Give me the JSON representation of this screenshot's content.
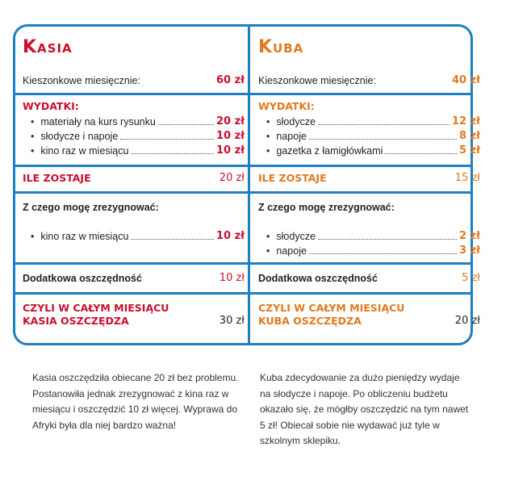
{
  "kasia": {
    "name": "Kasia",
    "allowance_label": "Kieszonkowe miesięcznie:",
    "allowance_value": "60 zł",
    "expenses_title": "WYDATKI:",
    "expenses": [
      {
        "label": "materiały na kurs rysunku",
        "value": "20 zł"
      },
      {
        "label": "słodycze i napoje",
        "value": "10 zł"
      },
      {
        "label": "kino raz w miesiącu",
        "value": "10 zł"
      }
    ],
    "left_label": "ILE ZOSTAJE",
    "left_value": "20 zł",
    "resign_title": "Z czego mogę zrezygnować:",
    "resign": [
      {
        "label": "kino raz w miesiącu",
        "value": "10 zł"
      }
    ],
    "extra_label": "Dodatkowa oszczędność",
    "extra_value": "10 zł",
    "total_line1": "CZYLI W CAŁYM MIESIĄCU",
    "total_line2": "KASIA OSZCZĘDZA",
    "total_value": "30 zł",
    "note": "Kasia oszczędziła obiecane 20 zł bez problemu. Postanowiła jednak zrezygnować z kina raz w miesiącu i oszczędzić 10 zł więcej. Wyprawa do Afryki była dla niej bardzo ważna!"
  },
  "kuba": {
    "name": "Kuba",
    "allowance_label": "Kieszonkowe miesięcznie:",
    "allowance_value": "40 zł",
    "expenses_title": "WYDATKI:",
    "expenses": [
      {
        "label": "słodycze",
        "value": "12 zł"
      },
      {
        "label": "napoje",
        "value": "8 zł"
      },
      {
        "label": "gazetka z łamigłówkami",
        "value": "5 zł"
      }
    ],
    "left_label": "ILE ZOSTAJE",
    "left_value": "15 zł",
    "resign_title": "Z czego mogę zrezygnować:",
    "resign": [
      {
        "label": "słodycze",
        "value": "2 zł"
      },
      {
        "label": "napoje",
        "value": "3 zł"
      }
    ],
    "extra_label": "Dodatkowa oszczędność",
    "extra_value": "5 zł",
    "total_line1": "CZYLI W CAŁYM MIESIĄCU",
    "total_line2": "KUBA OSZCZĘDZA",
    "total_value": "20 zł",
    "note": "Kuba zdecydowanie za dużo pieniędzy wydaje na słodycze i napoje. Po obliczeniu budżetu okazało się, że mógłby oszczędzić na tym nawet 5 zł! Obiecał sobie nie wydawać już tyle w szkolnym sklepiku."
  },
  "colors": {
    "frame": "#1f7fc4",
    "kasia": "#c8102e",
    "kuba": "#e07a20"
  }
}
